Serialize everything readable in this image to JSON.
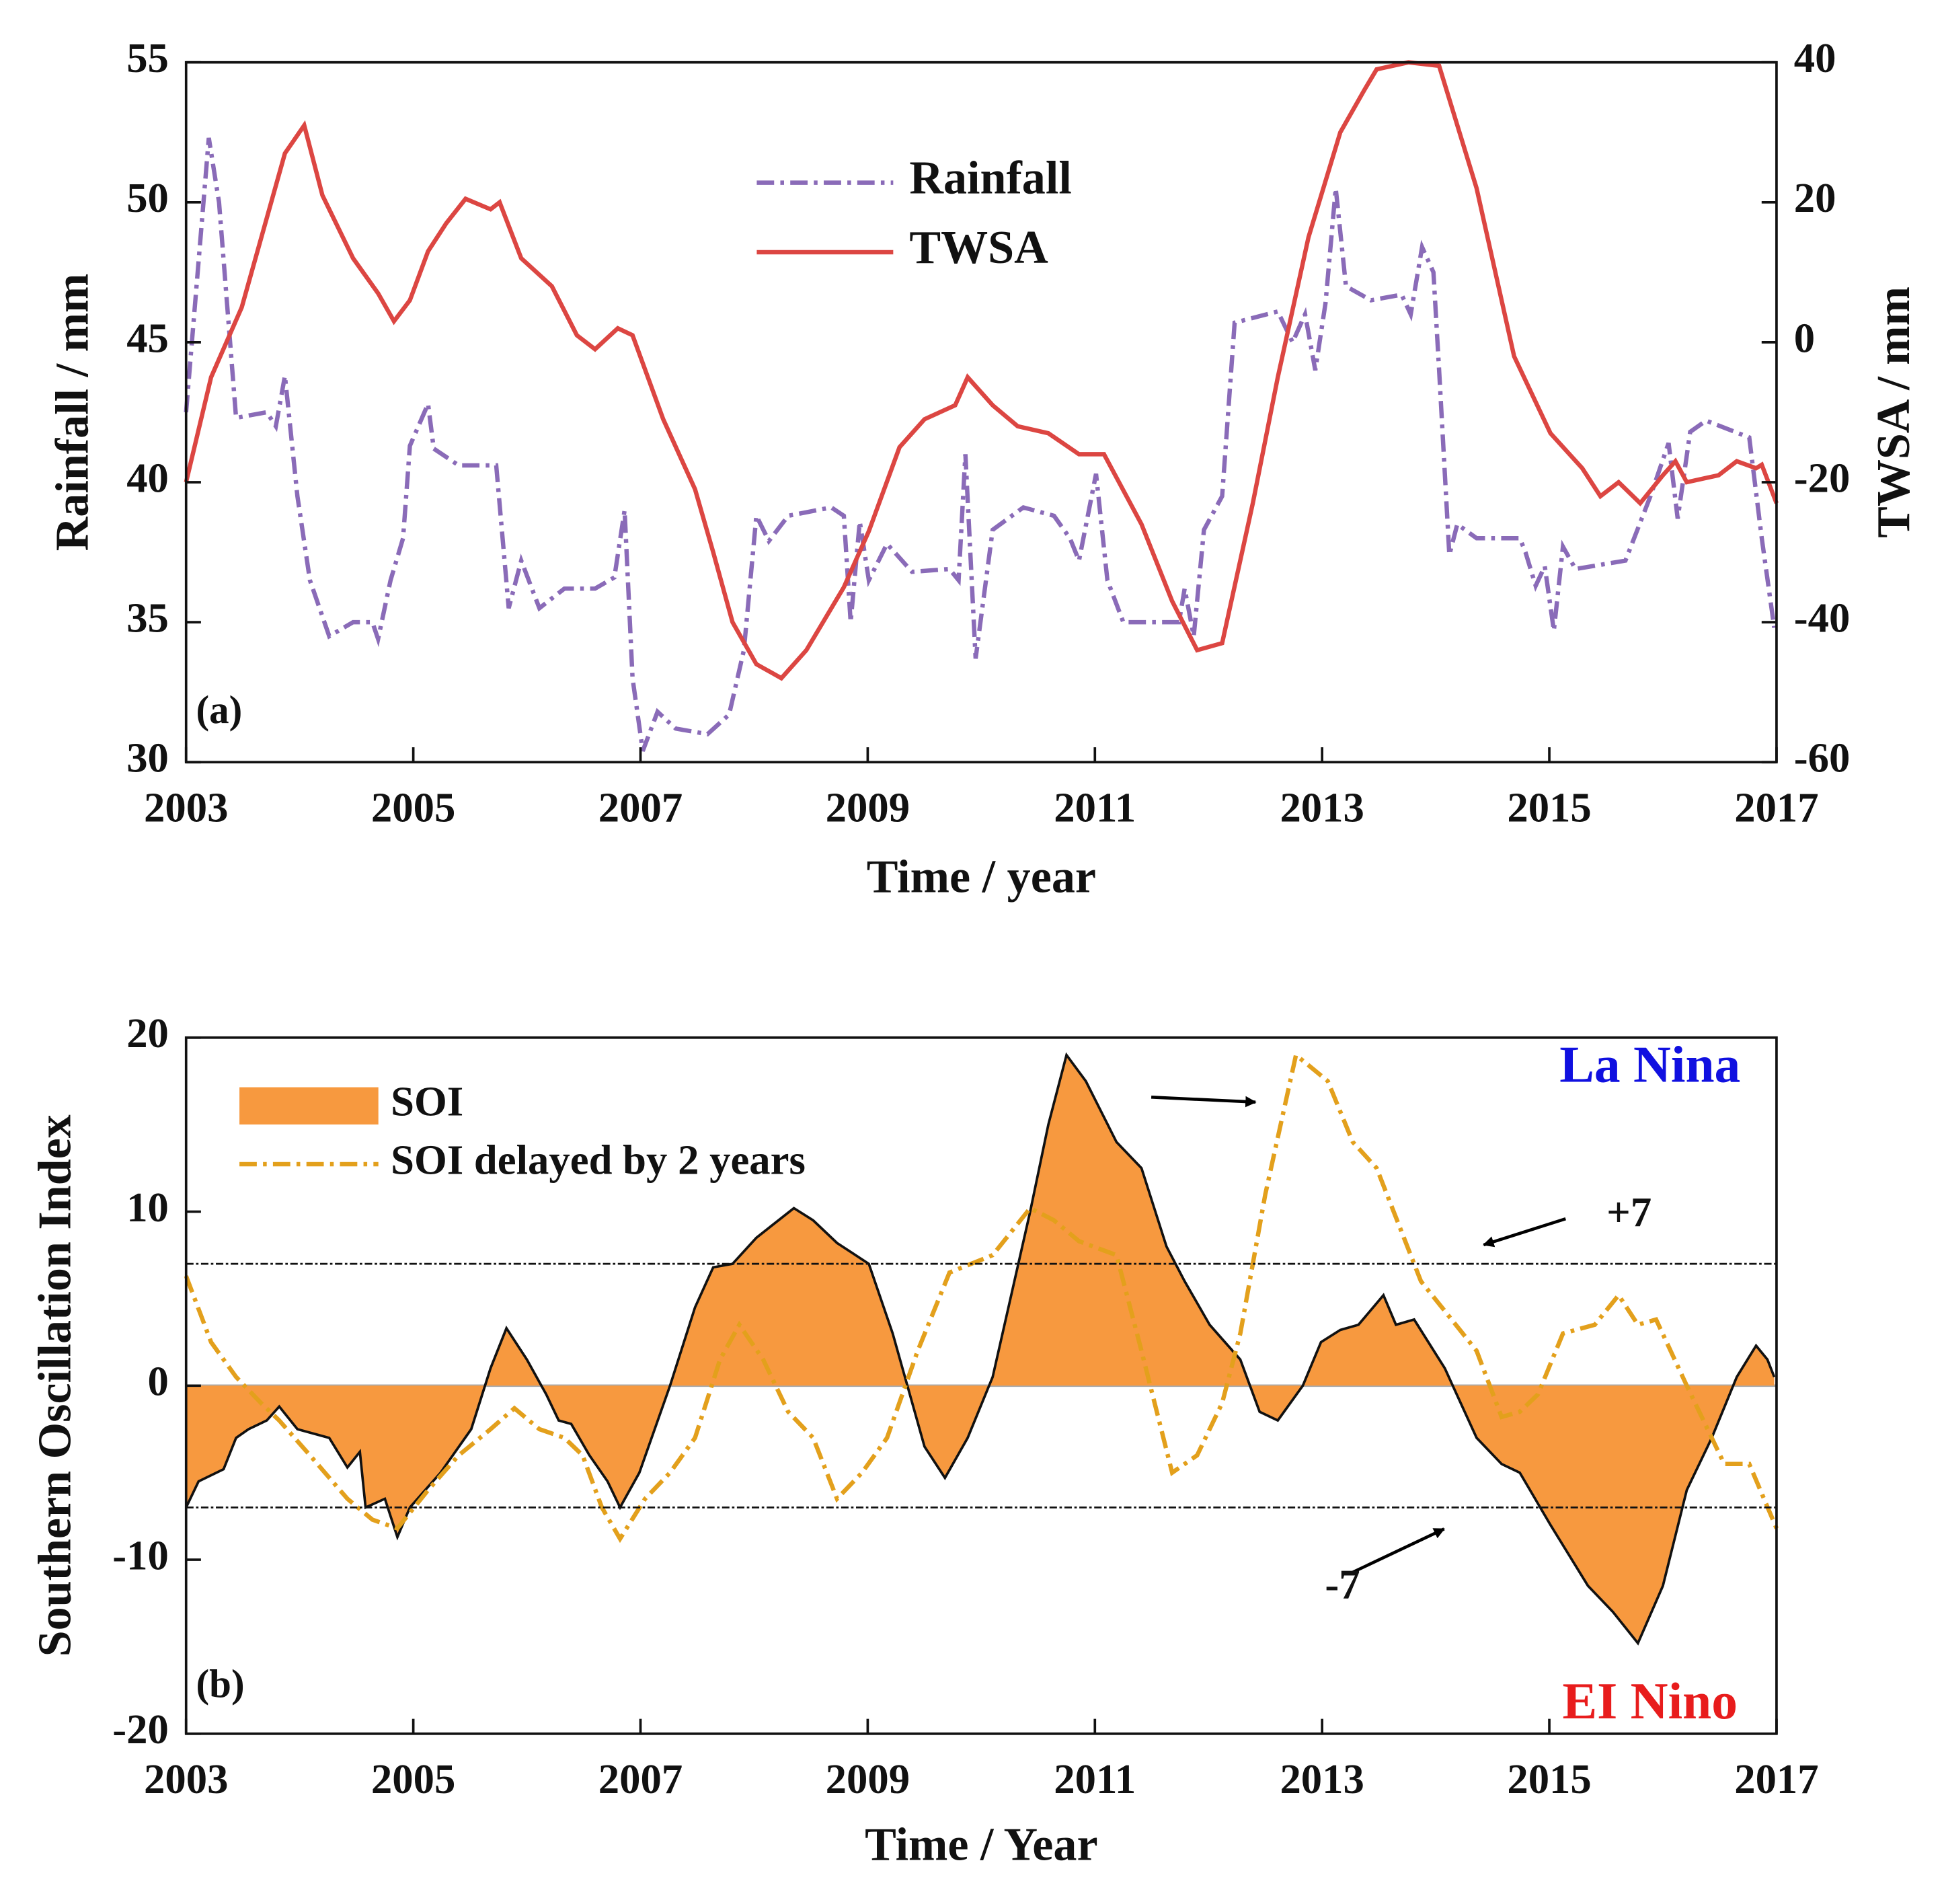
{
  "chart_data": [
    {
      "type": "line",
      "panel_label": "(a)",
      "xlabel": "Time / year",
      "ylabel": "Rainfall / mm",
      "y2label": "TWSA / mm",
      "xlim": [
        2003,
        2017
      ],
      "xticks": [
        2003,
        2005,
        2007,
        2009,
        2011,
        2013,
        2015,
        2017
      ],
      "ylim": [
        30,
        55
      ],
      "yticks": [
        30,
        35,
        40,
        45,
        50,
        55
      ],
      "y2lim": [
        -60,
        40
      ],
      "y2ticks": [
        -60,
        -40,
        -20,
        0,
        20,
        40
      ],
      "grid": false,
      "legend": "top",
      "series": [
        {
          "name": "Rainfall",
          "color": "#8a6bb8",
          "linestyle": "dashdot",
          "axis": "y",
          "x": [
            2003.0,
            2003.2,
            2003.29,
            2003.44,
            2003.71,
            2003.79,
            2003.87,
            2003.98,
            2004.09,
            2004.26,
            2004.47,
            2004.64,
            2004.69,
            2004.8,
            2004.91,
            2004.97,
            2005.13,
            2005.18,
            2005.4,
            2005.73,
            2005.84,
            2005.95,
            2006.11,
            2006.33,
            2006.6,
            2006.77,
            2006.86,
            2006.93,
            2007.02,
            2007.15,
            2007.31,
            2007.59,
            2007.78,
            2007.91,
            2008.02,
            2008.13,
            2008.3,
            2008.68,
            2008.79,
            2008.85,
            2008.93,
            2009.01,
            2009.17,
            2009.39,
            2009.72,
            2009.8,
            2009.86,
            2009.95,
            2010.1,
            2010.37,
            2010.64,
            2010.78,
            2010.86,
            2011.01,
            2011.11,
            2011.25,
            2011.74,
            2011.79,
            2011.87,
            2011.96,
            2012.12,
            2012.23,
            2012.61,
            2012.74,
            2012.85,
            2012.94,
            2013.03,
            2013.12,
            2013.21,
            2013.43,
            2013.7,
            2013.78,
            2013.88,
            2013.98,
            2014.03,
            2014.12,
            2014.19,
            2014.36,
            2014.74,
            2014.79,
            2014.88,
            2014.96,
            2015.04,
            2015.12,
            2015.23,
            2015.67,
            2015.89,
            2016.05,
            2016.13,
            2016.24,
            2016.38,
            2016.76,
            2016.87,
            2016.98
          ],
          "values": [
            42.5,
            52.3,
            50,
            42.3,
            42.5,
            42,
            43.8,
            39.5,
            36.5,
            34.5,
            35,
            35,
            34.4,
            36.5,
            38,
            41.3,
            42.8,
            41.2,
            40.6,
            40.6,
            35.5,
            37.2,
            35.5,
            36.2,
            36.2,
            36.6,
            39,
            33,
            30.4,
            31.8,
            31.2,
            31,
            31.7,
            34,
            38.8,
            37.9,
            38.8,
            39.1,
            38.8,
            35,
            38.6,
            36.5,
            37.8,
            36.8,
            36.9,
            36.5,
            41,
            33.7,
            38.3,
            39.1,
            38.8,
            38,
            37.2,
            40.3,
            36.5,
            35,
            35,
            36.2,
            34.5,
            38.3,
            39.5,
            45.7,
            46.1,
            45,
            46,
            44,
            46.4,
            50.5,
            47,
            46.5,
            46.7,
            46,
            48.4,
            47.5,
            44,
            37.4,
            38.5,
            38,
            38,
            37.5,
            36.3,
            37,
            34.7,
            37.7,
            36.9,
            37.2,
            39.5,
            41.4,
            38.7,
            41.8,
            42.2,
            41.6,
            38,
            34.8
          ]
        },
        {
          "name": "TWSA",
          "color": "#dc4642",
          "linestyle": "solid",
          "axis": "y2",
          "x": [
            2003.0,
            2003.22,
            2003.49,
            2003.87,
            2004.04,
            2004.2,
            2004.47,
            2004.69,
            2004.83,
            2004.97,
            2005.13,
            2005.29,
            2005.46,
            2005.68,
            2005.76,
            2005.95,
            2006.22,
            2006.44,
            2006.6,
            2006.8,
            2006.93,
            2007.2,
            2007.48,
            2007.64,
            2007.81,
            2008.02,
            2008.24,
            2008.46,
            2008.79,
            2009.01,
            2009.28,
            2009.5,
            2009.77,
            2009.88,
            2010.1,
            2010.32,
            2010.59,
            2010.86,
            2011.08,
            2011.41,
            2011.68,
            2011.9,
            2012.12,
            2012.39,
            2012.61,
            2012.88,
            2013.16,
            2013.37,
            2013.48,
            2013.76,
            2014.03,
            2014.36,
            2014.69,
            2015.01,
            2015.29,
            2015.45,
            2015.61,
            2015.8,
            2016.0,
            2016.11,
            2016.21,
            2016.49,
            2016.65,
            2016.82,
            2016.87,
            2017.0
          ],
          "values": [
            -20,
            -5,
            5,
            27,
            31,
            21,
            12,
            7,
            3,
            6,
            13,
            17,
            20.5,
            19,
            20,
            12,
            8,
            1,
            -1,
            2,
            1,
            -11,
            -21,
            -30,
            -40,
            -46,
            -48,
            -44,
            -35,
            -27,
            -15,
            -11,
            -9,
            -5,
            -9,
            -12,
            -13,
            -16,
            -16,
            -26,
            -37,
            -44,
            -43,
            -23,
            -5,
            15,
            30,
            36,
            39,
            40,
            39.5,
            22,
            -2,
            -13,
            -18,
            -22,
            -20,
            -23,
            -19,
            -17,
            -20,
            -19,
            -17,
            -18,
            -17.5,
            -23
          ]
        }
      ]
    },
    {
      "type": "area",
      "panel_label": "(b)",
      "xlabel": "Time / Year",
      "ylabel": "Southern Oscillation Index",
      "xlim": [
        2003,
        2017
      ],
      "xticks": [
        2003,
        2005,
        2007,
        2009,
        2011,
        2013,
        2015,
        2017
      ],
      "ylim": [
        -20,
        20
      ],
      "yticks": [
        -20,
        -10,
        0,
        10,
        20
      ],
      "grid": false,
      "legend": "upper left",
      "hlines": [
        {
          "value": 7,
          "label": "+7"
        },
        {
          "value": -7,
          "label": "-7"
        }
      ],
      "annotations": [
        {
          "text": "La Nina",
          "color": "#1010e0"
        },
        {
          "text": "EI Nino",
          "color": "#e81c1c"
        }
      ],
      "series": [
        {
          "name": "SOI",
          "color": "#f7993f",
          "edgecolor": "#111111",
          "fill": true,
          "linestyle": "solid",
          "x": [
            2003.0,
            2003.11,
            2003.33,
            2003.44,
            2003.55,
            2003.71,
            2003.82,
            2003.98,
            2004.26,
            2004.42,
            2004.53,
            2004.58,
            2004.75,
            2004.86,
            2004.97,
            2005.24,
            2005.51,
            2005.68,
            2005.82,
            2006.0,
            2006.17,
            2006.28,
            2006.39,
            2006.55,
            2006.71,
            2006.82,
            2006.99,
            2007.26,
            2007.48,
            2007.64,
            2007.81,
            2008.02,
            2008.35,
            2008.52,
            2008.73,
            2009.01,
            2009.22,
            2009.5,
            2009.68,
            2009.88,
            2010.1,
            2010.43,
            2010.59,
            2010.75,
            2010.92,
            2011.19,
            2011.41,
            2011.63,
            2011.79,
            2012.01,
            2012.28,
            2012.45,
            2012.61,
            2012.83,
            2012.99,
            2013.16,
            2013.32,
            2013.54,
            2013.65,
            2013.81,
            2014.08,
            2014.36,
            2014.58,
            2014.74,
            2015.01,
            2015.34,
            2015.56,
            2015.78,
            2016.0,
            2016.21,
            2016.43,
            2016.65,
            2016.82,
            2016.92,
            2016.98
          ],
          "values": [
            -7,
            -5.5,
            -4.8,
            -3,
            -2.5,
            -2,
            -1.2,
            -2.5,
            -3,
            -4.7,
            -3.8,
            -7,
            -6.5,
            -8.7,
            -7,
            -5,
            -2.5,
            1,
            3.3,
            1.5,
            -0.5,
            -2,
            -2.2,
            -4,
            -5.5,
            -7,
            -5,
            0,
            4.5,
            6.8,
            7,
            8.5,
            10.2,
            9.5,
            8.2,
            7,
            3,
            -3.5,
            -5.3,
            -3,
            0.5,
            10,
            15,
            19,
            17.5,
            14,
            12.5,
            8,
            6,
            3.5,
            1.5,
            -1.5,
            -2,
            0,
            2.5,
            3.2,
            3.5,
            5.2,
            3.5,
            3.8,
            1,
            -3,
            -4.5,
            -5,
            -8,
            -11.5,
            -13,
            -14.8,
            -11.5,
            -6,
            -3,
            0.5,
            2.3,
            1.5,
            0.5
          ]
        },
        {
          "name": "SOI delayed by 2 years",
          "color": "#e3a01c",
          "linestyle": "dashdot",
          "x": [
            2003.0,
            2003.22,
            2003.44,
            2003.66,
            2003.82,
            2004.09,
            2004.42,
            2004.64,
            2004.86,
            2005.13,
            2005.4,
            2005.68,
            2005.89,
            2006.11,
            2006.33,
            2006.49,
            2006.66,
            2006.82,
            2007.04,
            2007.26,
            2007.48,
            2007.7,
            2007.87,
            2008.08,
            2008.3,
            2008.52,
            2008.73,
            2008.95,
            2009.17,
            2009.44,
            2009.72,
            2010.1,
            2010.43,
            2010.64,
            2010.86,
            2011.19,
            2011.41,
            2011.68,
            2011.9,
            2012.12,
            2012.28,
            2012.5,
            2012.77,
            2013.05,
            2013.27,
            2013.48,
            2013.87,
            2014.14,
            2014.36,
            2014.58,
            2014.74,
            2014.9,
            2015.12,
            2015.4,
            2015.61,
            2015.78,
            2015.94,
            2016.21,
            2016.54,
            2016.76,
            2017.0
          ],
          "values": [
            6.3,
            2.5,
            0.5,
            -1,
            -2,
            -4,
            -6.5,
            -7.7,
            -8.2,
            -6,
            -4,
            -2.5,
            -1.3,
            -2.5,
            -3,
            -4,
            -7,
            -8.8,
            -6.5,
            -5,
            -3,
            1.5,
            3.5,
            1.5,
            -1.5,
            -3,
            -6.5,
            -5,
            -3,
            2,
            6.5,
            7.5,
            10.2,
            9.5,
            8.3,
            7.5,
            2,
            -5,
            -4,
            -1,
            3,
            11,
            19,
            17.5,
            14,
            12.5,
            6,
            3.8,
            2,
            -1.8,
            -1.5,
            -0.5,
            3,
            3.5,
            5.2,
            3.5,
            3.8,
            0,
            -4.5,
            -4.5,
            -8.2
          ]
        }
      ]
    }
  ]
}
